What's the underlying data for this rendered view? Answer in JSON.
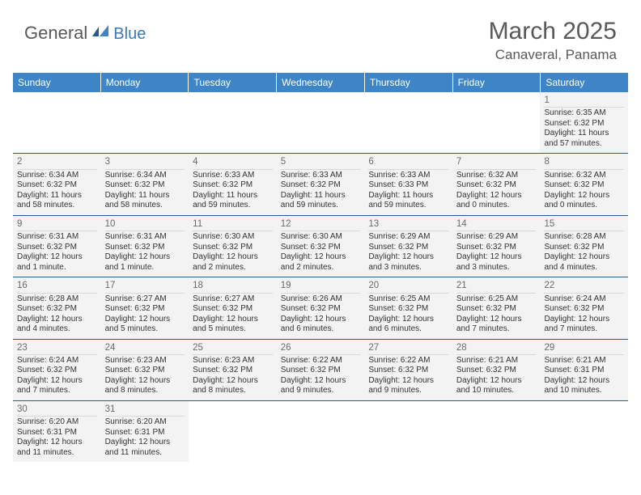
{
  "logo": {
    "general": "General",
    "blue": "Blue"
  },
  "title": "March 2025",
  "location": "Canaveral, Panama",
  "colors": {
    "header_bg": "#3d85c6",
    "header_text": "#ffffff",
    "cell_bg": "#f3f3f3",
    "row_border": "#2a5a8a",
    "title_color": "#58595b",
    "logo_blue": "#3a7ab8"
  },
  "weekdays": [
    "Sunday",
    "Monday",
    "Tuesday",
    "Wednesday",
    "Thursday",
    "Friday",
    "Saturday"
  ],
  "weeks": [
    [
      null,
      null,
      null,
      null,
      null,
      null,
      {
        "n": "1",
        "sr": "Sunrise: 6:35 AM",
        "ss": "Sunset: 6:32 PM",
        "dl": "Daylight: 11 hours and 57 minutes."
      }
    ],
    [
      {
        "n": "2",
        "sr": "Sunrise: 6:34 AM",
        "ss": "Sunset: 6:32 PM",
        "dl": "Daylight: 11 hours and 58 minutes."
      },
      {
        "n": "3",
        "sr": "Sunrise: 6:34 AM",
        "ss": "Sunset: 6:32 PM",
        "dl": "Daylight: 11 hours and 58 minutes."
      },
      {
        "n": "4",
        "sr": "Sunrise: 6:33 AM",
        "ss": "Sunset: 6:32 PM",
        "dl": "Daylight: 11 hours and 59 minutes."
      },
      {
        "n": "5",
        "sr": "Sunrise: 6:33 AM",
        "ss": "Sunset: 6:32 PM",
        "dl": "Daylight: 11 hours and 59 minutes."
      },
      {
        "n": "6",
        "sr": "Sunrise: 6:33 AM",
        "ss": "Sunset: 6:33 PM",
        "dl": "Daylight: 11 hours and 59 minutes."
      },
      {
        "n": "7",
        "sr": "Sunrise: 6:32 AM",
        "ss": "Sunset: 6:32 PM",
        "dl": "Daylight: 12 hours and 0 minutes."
      },
      {
        "n": "8",
        "sr": "Sunrise: 6:32 AM",
        "ss": "Sunset: 6:32 PM",
        "dl": "Daylight: 12 hours and 0 minutes."
      }
    ],
    [
      {
        "n": "9",
        "sr": "Sunrise: 6:31 AM",
        "ss": "Sunset: 6:32 PM",
        "dl": "Daylight: 12 hours and 1 minute."
      },
      {
        "n": "10",
        "sr": "Sunrise: 6:31 AM",
        "ss": "Sunset: 6:32 PM",
        "dl": "Daylight: 12 hours and 1 minute."
      },
      {
        "n": "11",
        "sr": "Sunrise: 6:30 AM",
        "ss": "Sunset: 6:32 PM",
        "dl": "Daylight: 12 hours and 2 minutes."
      },
      {
        "n": "12",
        "sr": "Sunrise: 6:30 AM",
        "ss": "Sunset: 6:32 PM",
        "dl": "Daylight: 12 hours and 2 minutes."
      },
      {
        "n": "13",
        "sr": "Sunrise: 6:29 AM",
        "ss": "Sunset: 6:32 PM",
        "dl": "Daylight: 12 hours and 3 minutes."
      },
      {
        "n": "14",
        "sr": "Sunrise: 6:29 AM",
        "ss": "Sunset: 6:32 PM",
        "dl": "Daylight: 12 hours and 3 minutes."
      },
      {
        "n": "15",
        "sr": "Sunrise: 6:28 AM",
        "ss": "Sunset: 6:32 PM",
        "dl": "Daylight: 12 hours and 4 minutes."
      }
    ],
    [
      {
        "n": "16",
        "sr": "Sunrise: 6:28 AM",
        "ss": "Sunset: 6:32 PM",
        "dl": "Daylight: 12 hours and 4 minutes."
      },
      {
        "n": "17",
        "sr": "Sunrise: 6:27 AM",
        "ss": "Sunset: 6:32 PM",
        "dl": "Daylight: 12 hours and 5 minutes."
      },
      {
        "n": "18",
        "sr": "Sunrise: 6:27 AM",
        "ss": "Sunset: 6:32 PM",
        "dl": "Daylight: 12 hours and 5 minutes."
      },
      {
        "n": "19",
        "sr": "Sunrise: 6:26 AM",
        "ss": "Sunset: 6:32 PM",
        "dl": "Daylight: 12 hours and 6 minutes."
      },
      {
        "n": "20",
        "sr": "Sunrise: 6:25 AM",
        "ss": "Sunset: 6:32 PM",
        "dl": "Daylight: 12 hours and 6 minutes."
      },
      {
        "n": "21",
        "sr": "Sunrise: 6:25 AM",
        "ss": "Sunset: 6:32 PM",
        "dl": "Daylight: 12 hours and 7 minutes."
      },
      {
        "n": "22",
        "sr": "Sunrise: 6:24 AM",
        "ss": "Sunset: 6:32 PM",
        "dl": "Daylight: 12 hours and 7 minutes."
      }
    ],
    [
      {
        "n": "23",
        "sr": "Sunrise: 6:24 AM",
        "ss": "Sunset: 6:32 PM",
        "dl": "Daylight: 12 hours and 7 minutes."
      },
      {
        "n": "24",
        "sr": "Sunrise: 6:23 AM",
        "ss": "Sunset: 6:32 PM",
        "dl": "Daylight: 12 hours and 8 minutes."
      },
      {
        "n": "25",
        "sr": "Sunrise: 6:23 AM",
        "ss": "Sunset: 6:32 PM",
        "dl": "Daylight: 12 hours and 8 minutes."
      },
      {
        "n": "26",
        "sr": "Sunrise: 6:22 AM",
        "ss": "Sunset: 6:32 PM",
        "dl": "Daylight: 12 hours and 9 minutes."
      },
      {
        "n": "27",
        "sr": "Sunrise: 6:22 AM",
        "ss": "Sunset: 6:32 PM",
        "dl": "Daylight: 12 hours and 9 minutes."
      },
      {
        "n": "28",
        "sr": "Sunrise: 6:21 AM",
        "ss": "Sunset: 6:32 PM",
        "dl": "Daylight: 12 hours and 10 minutes."
      },
      {
        "n": "29",
        "sr": "Sunrise: 6:21 AM",
        "ss": "Sunset: 6:31 PM",
        "dl": "Daylight: 12 hours and 10 minutes."
      }
    ],
    [
      {
        "n": "30",
        "sr": "Sunrise: 6:20 AM",
        "ss": "Sunset: 6:31 PM",
        "dl": "Daylight: 12 hours and 11 minutes."
      },
      {
        "n": "31",
        "sr": "Sunrise: 6:20 AM",
        "ss": "Sunset: 6:31 PM",
        "dl": "Daylight: 12 hours and 11 minutes."
      },
      null,
      null,
      null,
      null,
      null
    ]
  ]
}
